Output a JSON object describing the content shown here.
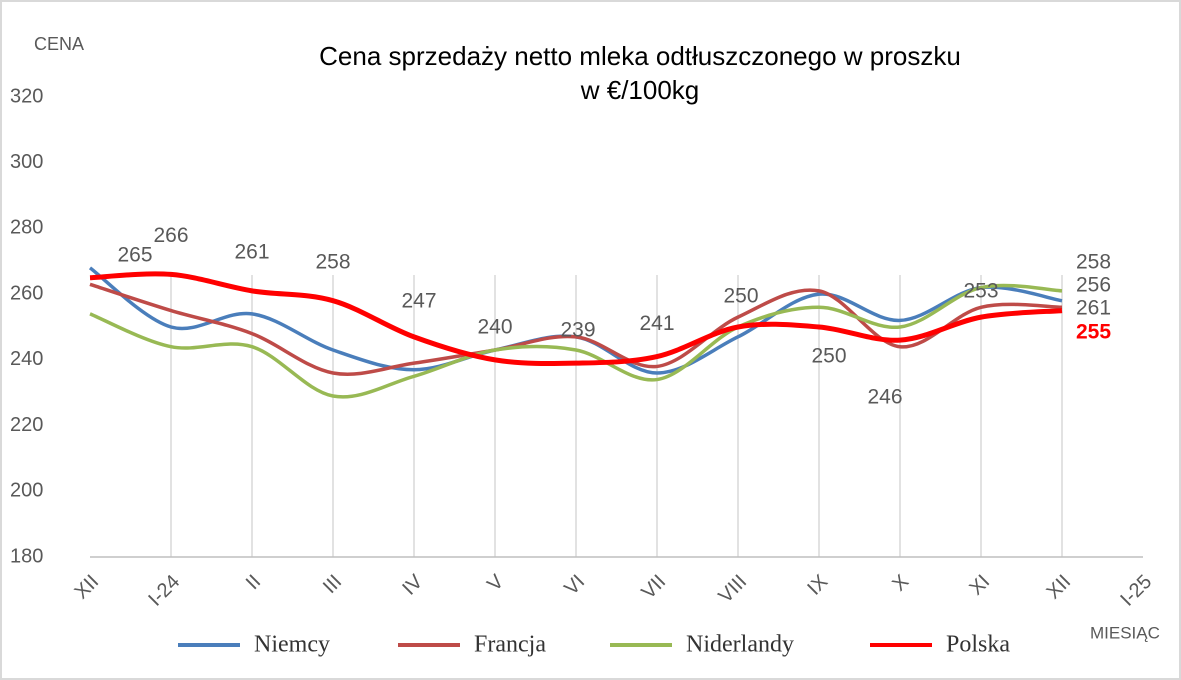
{
  "chart_data": {
    "type": "line",
    "title": [
      "Cena sprzedaży netto mleka odtłuszczonego  w proszku",
      "w €/100kg"
    ],
    "y_label": "CENA",
    "x_label": "MIESIĄC",
    "categories": [
      "XII",
      "I-24",
      "II",
      "III",
      "IV",
      "V",
      "VI",
      "VII",
      "VIII",
      "IX",
      "X",
      "XI",
      "XII",
      "I-25"
    ],
    "ylim": [
      180,
      320
    ],
    "yticks": [
      180,
      200,
      220,
      240,
      260,
      280,
      300,
      320
    ],
    "grid": "vertical",
    "legend": "bottom",
    "series": [
      {
        "name": "Niemcy",
        "color": "#4a7ebb",
        "data_labels": "last",
        "values": [
          268,
          250,
          254,
          243,
          237,
          243,
          247,
          236,
          247,
          260,
          252,
          262,
          258,
          null
        ]
      },
      {
        "name": "Francja",
        "color": "#be4b48",
        "data_labels": "last",
        "values": [
          263,
          255,
          248,
          236,
          239,
          243,
          247,
          238,
          253,
          261,
          244,
          256,
          256,
          null
        ]
      },
      {
        "name": "Niderlandy",
        "color": "#98b954",
        "data_labels": "last",
        "values": [
          254,
          244,
          244,
          229,
          235,
          243,
          243,
          234,
          250,
          256,
          250,
          262,
          261,
          null
        ]
      },
      {
        "name": "Polska",
        "color": "#ff0000",
        "data_labels": "all",
        "values": [
          265,
          266,
          261,
          258,
          247,
          240,
          239,
          241,
          250,
          250,
          246,
          253,
          255,
          null
        ]
      }
    ]
  }
}
